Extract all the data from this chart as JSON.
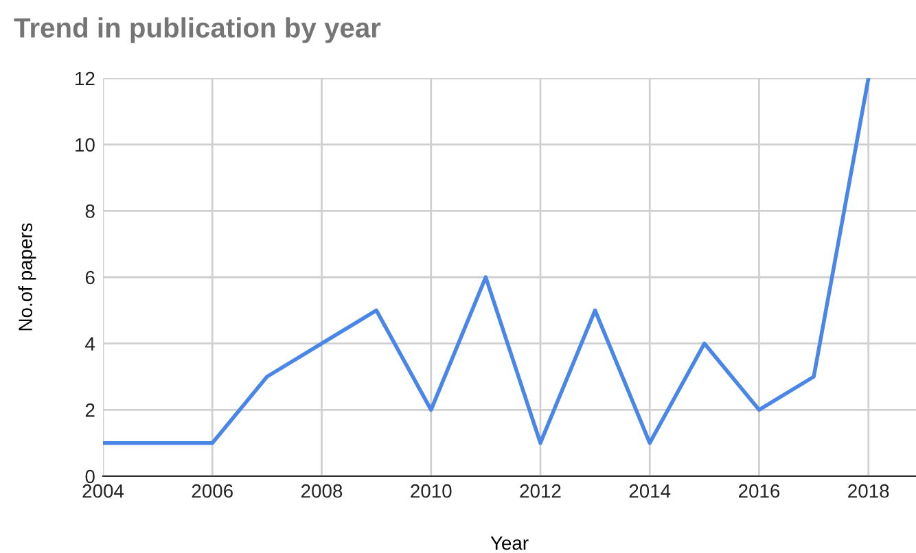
{
  "chart_data": {
    "type": "line",
    "title": "Trend in publication by year",
    "xlabel": "Year",
    "ylabel": "No.of papers",
    "x": [
      2004,
      2005,
      2006,
      2007,
      2008,
      2009,
      2010,
      2011,
      2012,
      2013,
      2014,
      2015,
      2016,
      2017,
      2018
    ],
    "series": [
      {
        "color": "#4a86e8",
        "values": [
          1,
          1,
          1,
          3,
          4,
          5,
          2,
          6,
          1,
          5,
          1,
          4,
          2,
          3,
          12
        ]
      }
    ],
    "xlim": [
      2004,
      2018.87
    ],
    "xticks": [
      2004,
      2006,
      2008,
      2010,
      2012,
      2014,
      2016,
      2018
    ],
    "ylim": [
      0,
      12
    ],
    "yticks": [
      0,
      2,
      4,
      6,
      8,
      10,
      12
    ],
    "grid": true,
    "marker": "none",
    "line_style": "solid"
  }
}
